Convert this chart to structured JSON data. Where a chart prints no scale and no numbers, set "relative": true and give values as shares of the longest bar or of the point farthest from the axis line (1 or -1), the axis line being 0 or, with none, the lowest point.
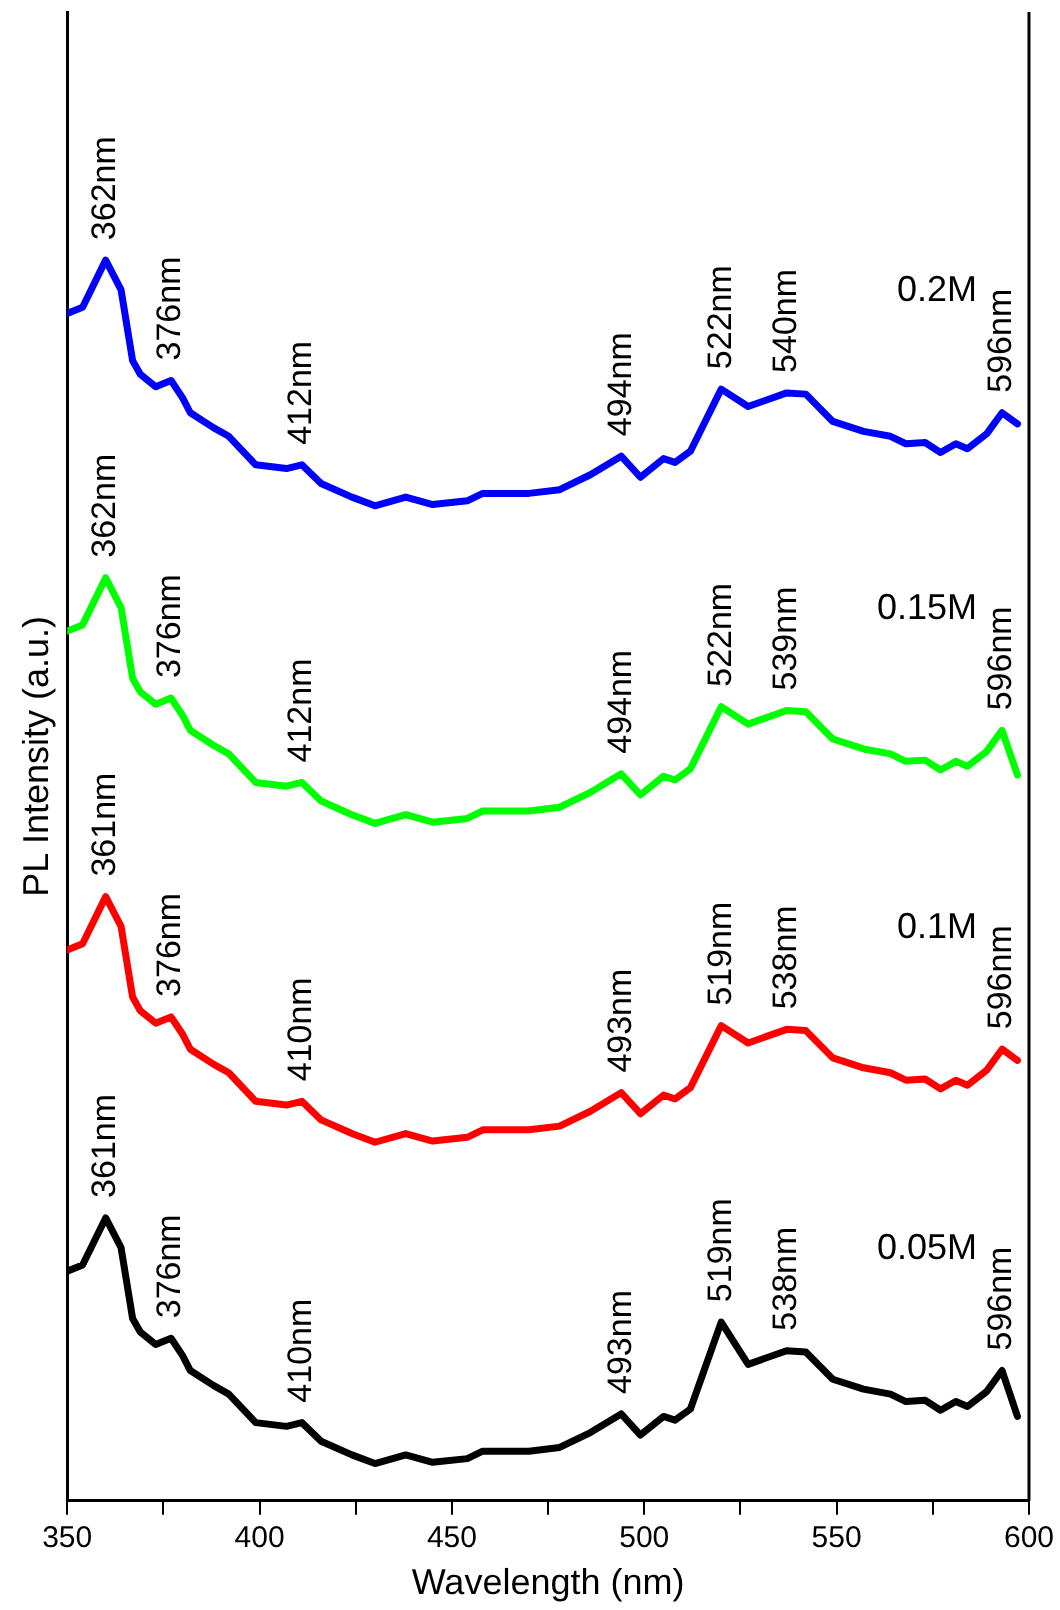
{
  "chart_data": {
    "type": "line",
    "xlabel": "Wavelength (nm)",
    "ylabel": "PL Intensity (a.u.)",
    "relative": true,
    "tick_labels": "x",
    "grid": false,
    "legend": false,
    "marker": "none",
    "line_style": "solid",
    "x": [
      350,
      354,
      360,
      364,
      367,
      369,
      373,
      377,
      380,
      382,
      388,
      392,
      399,
      407,
      411,
      416,
      424,
      430,
      438,
      445,
      454,
      458,
      470,
      478,
      486,
      494,
      499,
      505,
      508,
      512,
      520,
      527,
      537,
      542,
      549,
      557,
      564,
      568,
      573,
      577,
      581,
      584,
      589,
      593,
      597
    ],
    "xlim": [
      350,
      600
    ],
    "xticks": [
      350,
      {
        "value": 375,
        "label": null
      },
      400,
      {
        "value": 425,
        "label": null
      },
      450,
      {
        "value": 475,
        "label": null
      },
      500,
      {
        "value": 525,
        "label": null
      },
      550,
      {
        "value": 575,
        "label": null
      },
      600
    ],
    "series": [
      {
        "name": "0.2M",
        "color": "#0000ff",
        "values": [
          0.957,
          0.962,
          1,
          0.976,
          0.919,
          0.908,
          0.898,
          0.903,
          0.889,
          0.877,
          0.865,
          0.858,
          0.835,
          0.832,
          0.835,
          0.82,
          0.809,
          0.802,
          0.809,
          0.803,
          0.806,
          0.812,
          0.812,
          0.815,
          0.827,
          0.842,
          0.825,
          0.84,
          0.837,
          0.846,
          0.896,
          0.882,
          0.893,
          0.892,
          0.87,
          0.862,
          0.858,
          0.852,
          0.853,
          0.845,
          0.852,
          0.848,
          0.86,
          0.877,
          0.868
        ]
      },
      {
        "name": "0.15M",
        "color": "#00ff00",
        "values": [
          0.701,
          0.706,
          0.744,
          0.72,
          0.663,
          0.652,
          0.642,
          0.647,
          0.633,
          0.621,
          0.609,
          0.602,
          0.579,
          0.576,
          0.579,
          0.564,
          0.553,
          0.546,
          0.553,
          0.547,
          0.55,
          0.556,
          0.556,
          0.559,
          0.571,
          0.586,
          0.569,
          0.584,
          0.581,
          0.59,
          0.64,
          0.626,
          0.637,
          0.636,
          0.614,
          0.606,
          0.602,
          0.596,
          0.597,
          0.589,
          0.596,
          0.592,
          0.604,
          0.621,
          0.585
        ]
      },
      {
        "name": "0.1M",
        "color": "#ff0000",
        "values": [
          0.444,
          0.449,
          0.487,
          0.463,
          0.406,
          0.395,
          0.385,
          0.39,
          0.376,
          0.364,
          0.352,
          0.345,
          0.322,
          0.319,
          0.322,
          0.307,
          0.296,
          0.289,
          0.296,
          0.29,
          0.293,
          0.299,
          0.299,
          0.302,
          0.314,
          0.329,
          0.312,
          0.327,
          0.324,
          0.333,
          0.383,
          0.369,
          0.38,
          0.379,
          0.357,
          0.349,
          0.345,
          0.339,
          0.34,
          0.332,
          0.339,
          0.335,
          0.347,
          0.364,
          0.355
        ]
      },
      {
        "name": "0.05M",
        "color": "#000000",
        "values": [
          0.185,
          0.19,
          0.228,
          0.204,
          0.147,
          0.136,
          0.126,
          0.131,
          0.117,
          0.105,
          0.093,
          0.086,
          0.063,
          0.06,
          0.063,
          0.048,
          0.037,
          0.03,
          0.037,
          0.031,
          0.034,
          0.04,
          0.04,
          0.043,
          0.055,
          0.07,
          0.053,
          0.068,
          0.065,
          0.074,
          0.144,
          0.11,
          0.121,
          0.12,
          0.098,
          0.09,
          0.086,
          0.08,
          0.081,
          0.073,
          0.08,
          0.076,
          0.088,
          0.105,
          0.068
        ]
      }
    ],
    "annotations": [
      {
        "text": "362nm",
        "x": 360,
        "y": 1
      },
      {
        "text": "376nm",
        "x": 377,
        "y": 0.903
      },
      {
        "text": "412nm",
        "x": 411,
        "y": 0.835
      },
      {
        "text": "494nm",
        "x": 494,
        "y": 0.842
      },
      {
        "text": "522nm",
        "x": 520,
        "y": 0.896
      },
      {
        "text": "540nm",
        "x": 537,
        "y": 0.893
      },
      {
        "text": "596nm",
        "x": 593,
        "y": 0.877
      },
      {
        "text": "362nm",
        "x": 360,
        "y": 0.744
      },
      {
        "text": "376nm",
        "x": 377,
        "y": 0.647
      },
      {
        "text": "412nm",
        "x": 411,
        "y": 0.579
      },
      {
        "text": "494nm",
        "x": 494,
        "y": 0.586
      },
      {
        "text": "522nm",
        "x": 520,
        "y": 0.64
      },
      {
        "text": "539nm",
        "x": 537,
        "y": 0.637
      },
      {
        "text": "596nm",
        "x": 593,
        "y": 0.621
      },
      {
        "text": "361nm",
        "x": 360,
        "y": 0.487
      },
      {
        "text": "376nm",
        "x": 377,
        "y": 0.39
      },
      {
        "text": "410nm",
        "x": 411,
        "y": 0.322
      },
      {
        "text": "493nm",
        "x": 494,
        "y": 0.329
      },
      {
        "text": "519nm",
        "x": 520,
        "y": 0.383
      },
      {
        "text": "538nm",
        "x": 537,
        "y": 0.38
      },
      {
        "text": "596nm",
        "x": 593,
        "y": 0.364
      },
      {
        "text": "361nm",
        "x": 360,
        "y": 0.228
      },
      {
        "text": "376nm",
        "x": 377,
        "y": 0.131
      },
      {
        "text": "410nm",
        "x": 411,
        "y": 0.063
      },
      {
        "text": "493nm",
        "x": 494,
        "y": 0.07
      },
      {
        "text": "519nm",
        "x": 520,
        "y": 0.144
      },
      {
        "text": "538nm",
        "x": 537,
        "y": 0.121
      },
      {
        "text": "596nm",
        "x": 593,
        "y": 0.105
      }
    ]
  }
}
